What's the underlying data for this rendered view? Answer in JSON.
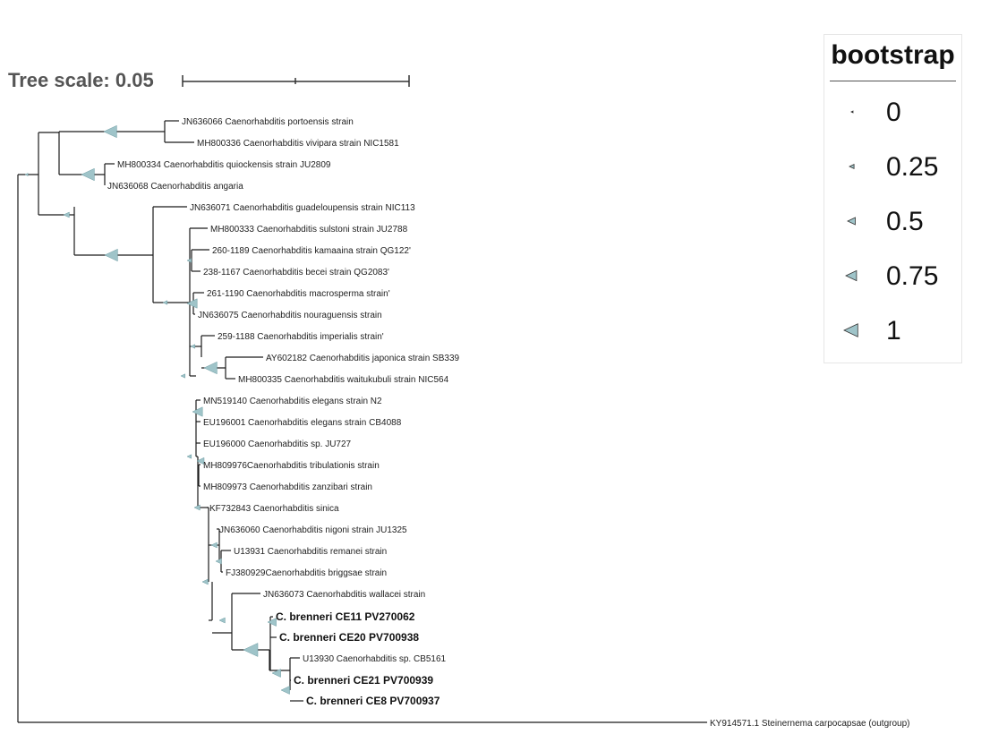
{
  "scale": {
    "title": "Tree scale: 0.05"
  },
  "legend": {
    "title": "bootstrap",
    "items": [
      {
        "label": "0",
        "value": 0
      },
      {
        "label": "0.25",
        "value": 0.25
      },
      {
        "label": "0.5",
        "value": 0.5
      },
      {
        "label": "0.75",
        "value": 0.75
      },
      {
        "label": "1",
        "value": 1
      }
    ]
  },
  "colors": {
    "branch": "#1a1a1a",
    "marker": "#9fc4c9",
    "marker_stroke": "#6e9ca3"
  },
  "taxa": [
    "JN636066 Caenorhabditis portoensis strain",
    "MH800336 Caenorhabditis vivipara strain NIC1581",
    "MH800334 Caenorhabditis quiockensis strain JU2809",
    "JN636068 Caenorhabditis angaria",
    "JN636071 Caenorhabditis guadeloupensis strain NIC113",
    "MH800333 Caenorhabditis sulstoni strain JU2788",
    "260-1189 Caenorhabditis kamaaina strain QG122'",
    "238-1167 Caenorhabditis becei strain QG2083'",
    "261-1190 Caenorhabditis macrosperma strain'",
    "JN636075 Caenorhabditis nouraguensis strain",
    "259-1188 Caenorhabditis imperialis strain'",
    "AY602182 Caenorhabditis japonica strain SB339",
    "MH800335 Caenorhabditis waitukubuli strain NIC564",
    "MN519140 Caenorhabditis elegans strain N2",
    "EU196001 Caenorhabditis elegans strain CB4088",
    "EU196000 Caenorhabditis sp. JU727",
    "MH809976Caenorhabditis tribulationis strain",
    "MH809973 Caenorhabditis zanzibari strain",
    "KF732843 Caenorhabditis sinica",
    "JN636060 Caenorhabditis nigoni strain JU1325",
    "U13931 Caenorhabditis remanei strain",
    "FJ380929Caenorhabditis briggsae strain",
    "JN636073 Caenorhabditis wallacei strain",
    "C. brenneri CE11 PV270062",
    "C. brenneri CE20 PV700938",
    "U13930 Caenorhabditis sp. CB5161",
    "C. brenneri CE21 PV700939",
    "C. brenneri CE8 PV700937",
    "KY914571.1 Steinernema carpocapsae (outgroup)"
  ],
  "bold_taxa": [
    23,
    24,
    26,
    27
  ]
}
